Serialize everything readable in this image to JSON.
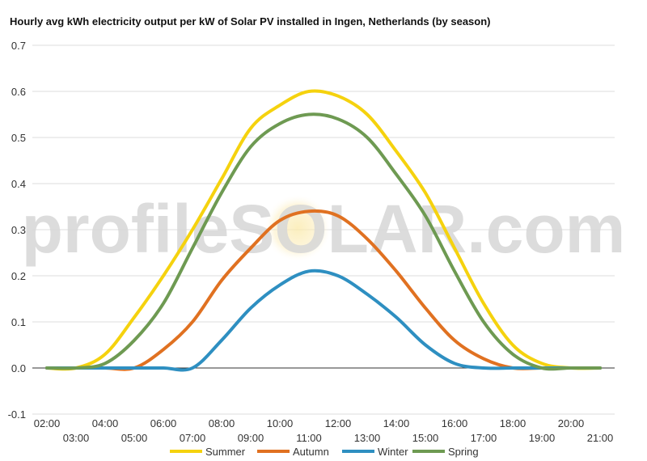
{
  "chart_data": {
    "type": "line",
    "title": "Hourly avg kWh electricity output per kW of Solar PV installed in Ingen, Netherlands (by season)",
    "xlabel": "",
    "ylabel": "",
    "ylim": [
      -0.1,
      0.7
    ],
    "yticks": [
      "0.7",
      "0.6",
      "0.5",
      "0.4",
      "0.3",
      "0.2",
      "0.1",
      "0.0",
      "-0.1"
    ],
    "x_ticks_upper": [
      "02:00",
      "04:00",
      "06:00",
      "08:00",
      "10:00",
      "12:00",
      "14:00",
      "16:00",
      "18:00",
      "20:00"
    ],
    "x_ticks_lower": [
      "03:00",
      "05:00",
      "07:00",
      "09:00",
      "11:00",
      "13:00",
      "15:00",
      "17:00",
      "19:00",
      "21:00"
    ],
    "x": [
      2,
      3,
      4,
      5,
      6,
      7,
      8,
      9,
      10,
      11,
      12,
      13,
      14,
      15,
      16,
      17,
      18,
      19,
      20,
      21
    ],
    "series": [
      {
        "name": "Summer",
        "color": "#f5d20e",
        "values": [
          0.0,
          0.0,
          0.03,
          0.11,
          0.2,
          0.3,
          0.41,
          0.52,
          0.57,
          0.6,
          0.59,
          0.55,
          0.47,
          0.38,
          0.26,
          0.14,
          0.05,
          0.01,
          0.0,
          0.0
        ]
      },
      {
        "name": "Autumn",
        "color": "#e07121",
        "values": [
          0.0,
          0.0,
          0.0,
          0.0,
          0.04,
          0.1,
          0.19,
          0.26,
          0.32,
          0.34,
          0.33,
          0.28,
          0.21,
          0.13,
          0.06,
          0.02,
          0.0,
          0.0,
          0.0,
          0.0
        ]
      },
      {
        "name": "Winter",
        "color": "#2e8fc1",
        "values": [
          0.0,
          0.0,
          0.0,
          0.0,
          0.0,
          0.0,
          0.06,
          0.13,
          0.18,
          0.21,
          0.2,
          0.16,
          0.11,
          0.05,
          0.01,
          0.0,
          0.0,
          0.0,
          0.0,
          0.0
        ]
      },
      {
        "name": "Spring",
        "color": "#6e9a52",
        "values": [
          0.0,
          0.0,
          0.01,
          0.06,
          0.14,
          0.26,
          0.38,
          0.48,
          0.53,
          0.55,
          0.54,
          0.5,
          0.42,
          0.33,
          0.21,
          0.1,
          0.03,
          0.0,
          0.0,
          0.0
        ]
      }
    ],
    "legend_position": "bottom",
    "grid": true
  },
  "watermark": {
    "text": "profileSOLAR.com"
  }
}
